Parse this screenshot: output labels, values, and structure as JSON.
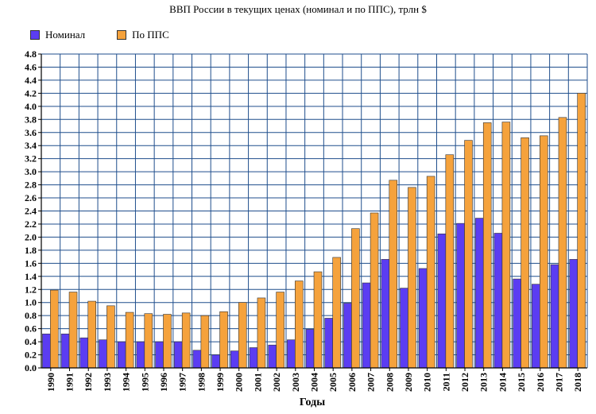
{
  "chart_data": {
    "type": "bar",
    "title": "ВВП России в текущих ценах (номинал и по ППС), трлн $",
    "xlabel": "Годы",
    "ylabel": "",
    "ylim": [
      0,
      4.8
    ],
    "ytick_step": 0.2,
    "grid": true,
    "legend_position": "top-left",
    "categories": [
      "1990",
      "1991",
      "1992",
      "1993",
      "1994",
      "1995",
      "1996",
      "1997",
      "1998",
      "1999",
      "2000",
      "2001",
      "2002",
      "2003",
      "2004",
      "2005",
      "2006",
      "2007",
      "2008",
      "2009",
      "2010",
      "2011",
      "2012",
      "2013",
      "2014",
      "2015",
      "2016",
      "2017",
      "2018"
    ],
    "series": [
      {
        "name": "Номинал",
        "color": "#5b3df2",
        "values": [
          0.52,
          0.52,
          0.46,
          0.43,
          0.4,
          0.4,
          0.4,
          0.4,
          0.27,
          0.2,
          0.26,
          0.31,
          0.35,
          0.43,
          0.59,
          0.76,
          0.99,
          1.3,
          1.66,
          1.22,
          1.52,
          2.05,
          2.21,
          2.29,
          2.06,
          1.36,
          1.28,
          1.58,
          1.66
        ]
      },
      {
        "name": "По ППС",
        "color": "#f5a23c",
        "values": [
          1.19,
          1.16,
          1.02,
          0.95,
          0.85,
          0.83,
          0.82,
          0.84,
          0.8,
          0.86,
          1.0,
          1.07,
          1.16,
          1.33,
          1.47,
          1.69,
          2.13,
          2.37,
          2.87,
          2.76,
          2.93,
          3.26,
          3.48,
          3.75,
          3.76,
          3.52,
          3.55,
          3.83,
          4.2
        ]
      }
    ]
  }
}
